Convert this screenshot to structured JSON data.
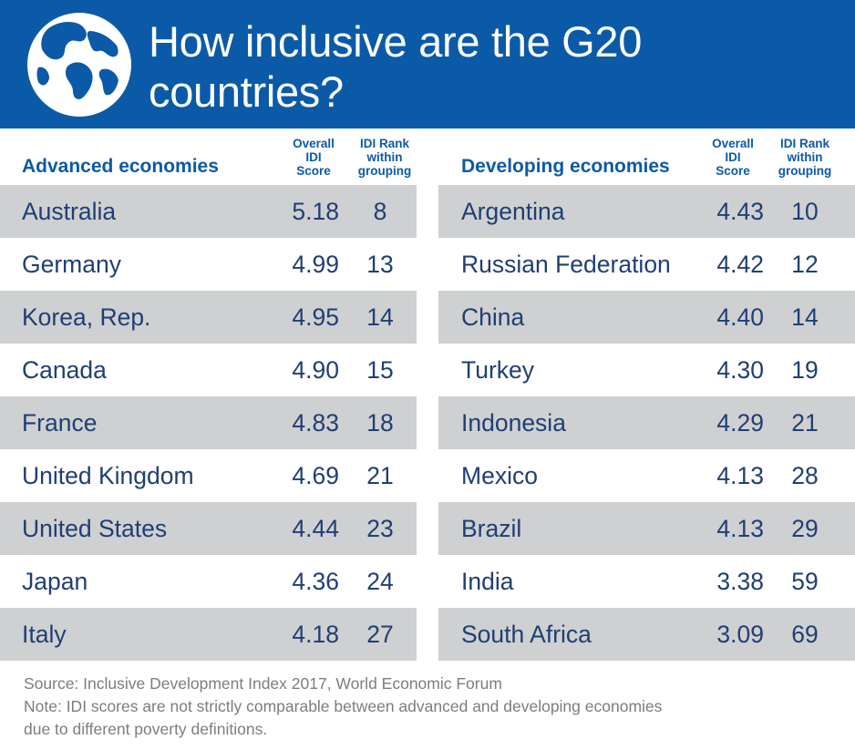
{
  "header": {
    "title_line1": "How inclusive are the G20",
    "title_line2": "countries?",
    "icon": "globe-icon"
  },
  "chart_data": {
    "type": "table",
    "column_headers": {
      "score": [
        "Overall",
        "IDI",
        "Score"
      ],
      "rank": [
        "IDI Rank",
        "within",
        "grouping"
      ]
    },
    "groups": [
      {
        "name": "Advanced economies",
        "rows": [
          {
            "country": "Australia",
            "score": "5.18",
            "rank": "8"
          },
          {
            "country": "Germany",
            "score": "4.99",
            "rank": "13"
          },
          {
            "country": "Korea, Rep.",
            "score": "4.95",
            "rank": "14"
          },
          {
            "country": "Canada",
            "score": "4.90",
            "rank": "15"
          },
          {
            "country": "France",
            "score": "4.83",
            "rank": "18"
          },
          {
            "country": "United Kingdom",
            "score": "4.69",
            "rank": "21"
          },
          {
            "country": "United States",
            "score": "4.44",
            "rank": "23"
          },
          {
            "country": "Japan",
            "score": "4.36",
            "rank": "24"
          },
          {
            "country": "Italy",
            "score": "4.18",
            "rank": "27"
          }
        ]
      },
      {
        "name": "Developing economies",
        "rows": [
          {
            "country": "Argentina",
            "score": "4.43",
            "rank": "10"
          },
          {
            "country": "Russian Federation",
            "score": "4.42",
            "rank": "12"
          },
          {
            "country": "China",
            "score": "4.40",
            "rank": "14"
          },
          {
            "country": "Turkey",
            "score": "4.30",
            "rank": "19"
          },
          {
            "country": "Indonesia",
            "score": "4.29",
            "rank": "21"
          },
          {
            "country": "Mexico",
            "score": "4.13",
            "rank": "28"
          },
          {
            "country": "Brazil",
            "score": "4.13",
            "rank": "29"
          },
          {
            "country": "India",
            "score": "3.38",
            "rank": "59"
          },
          {
            "country": "South Africa",
            "score": "3.09",
            "rank": "69"
          }
        ]
      }
    ]
  },
  "footer": {
    "source": "Source: Inclusive Development Index 2017, World Economic Forum",
    "note_line1": "Note: IDI scores are not strictly comparable between advanced and developing economies",
    "note_line2": "due to different poverty definitions."
  },
  "colors": {
    "header_bg": "#0b5aa8",
    "heading_text": "#0b5aa8",
    "body_text": "#1f3f73",
    "row_shade": "#cfd0d2",
    "note_text": "#7b7d80"
  }
}
